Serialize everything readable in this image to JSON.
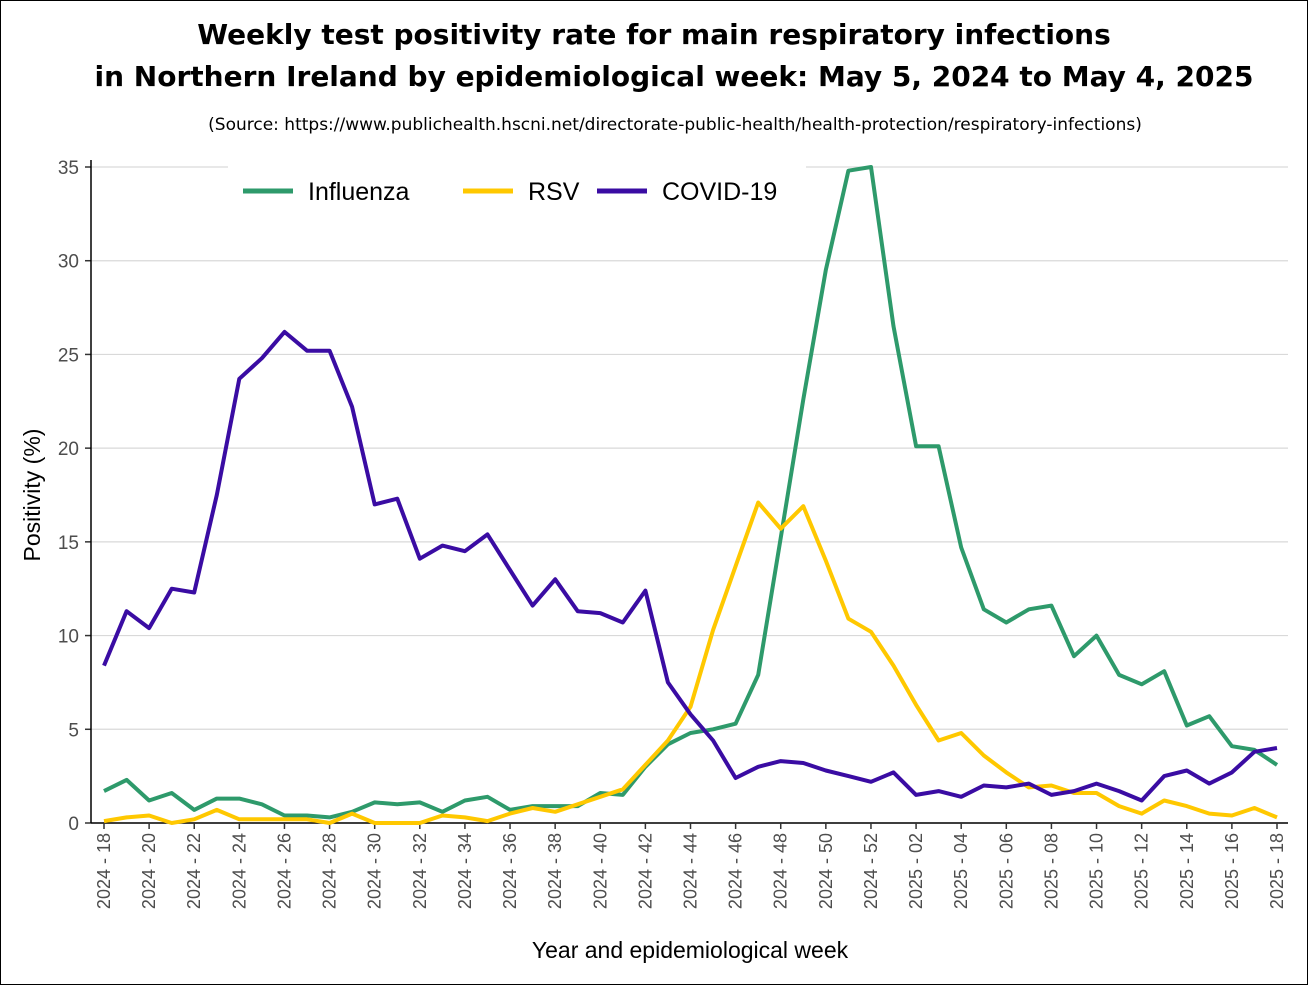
{
  "title_line1": "Weekly test positivity rate for main respiratory infections",
  "title_line2": "in Northern Ireland by epidemiological week: May 5, 2024 to May 4, 2025",
  "source": "(Source: https://www.publichealth.hscni.net/directorate-public-health/health-protection/respiratory-infections)",
  "chart_data": {
    "type": "line",
    "xlabel": "Year and epidemiological week",
    "ylabel": "Positivity (%)",
    "ylim": [
      0,
      35
    ],
    "yticks": [
      0,
      5,
      10,
      15,
      20,
      25,
      30,
      35
    ],
    "grid": "horizontal",
    "legend_position": "top-left",
    "x": [
      "2024 - 18",
      "2024 - 19",
      "2024 - 20",
      "2024 - 21",
      "2024 - 22",
      "2024 - 23",
      "2024 - 24",
      "2024 - 25",
      "2024 - 26",
      "2024 - 27",
      "2024 - 28",
      "2024 - 29",
      "2024 - 30",
      "2024 - 31",
      "2024 - 32",
      "2024 - 33",
      "2024 - 34",
      "2024 - 35",
      "2024 - 36",
      "2024 - 37",
      "2024 - 38",
      "2024 - 39",
      "2024 - 40",
      "2024 - 41",
      "2024 - 42",
      "2024 - 43",
      "2024 - 44",
      "2024 - 45",
      "2024 - 46",
      "2024 - 47",
      "2024 - 48",
      "2024 - 49",
      "2024 - 50",
      "2024 - 51",
      "2024 - 52",
      "2025 - 01",
      "2025 - 02",
      "2025 - 03",
      "2025 - 04",
      "2025 - 05",
      "2025 - 06",
      "2025 - 07",
      "2025 - 08",
      "2025 - 09",
      "2025 - 10",
      "2025 - 11",
      "2025 - 12",
      "2025 - 13",
      "2025 - 14",
      "2025 - 15",
      "2025 - 16",
      "2025 - 17",
      "2025 - 18"
    ],
    "tick_labels": [
      "2024 - 18",
      "2024 - 20",
      "2024 - 22",
      "2024 - 24",
      "2024 - 26",
      "2024 - 28",
      "2024 - 30",
      "2024 - 32",
      "2024 - 34",
      "2024 - 36",
      "2024 - 38",
      "2024 - 40",
      "2024 - 42",
      "2024 - 44",
      "2024 - 46",
      "2024 - 48",
      "2024 - 50",
      "2024 - 52",
      "2025 - 02",
      "2025 - 04",
      "2025 - 06",
      "2025 - 08",
      "2025 - 10",
      "2025 - 12",
      "2025 - 14",
      "2025 - 16",
      "2025 - 18"
    ],
    "series": [
      {
        "name": "Influenza",
        "color": "#2e9a6b",
        "values": [
          1.7,
          2.3,
          1.2,
          1.6,
          0.7,
          1.3,
          1.3,
          1.0,
          0.4,
          0.4,
          0.3,
          0.6,
          1.1,
          1.0,
          1.1,
          0.6,
          1.2,
          1.4,
          0.7,
          0.9,
          0.9,
          0.9,
          1.6,
          1.5,
          3.0,
          4.2,
          4.8,
          5.0,
          5.3,
          7.9,
          15.2,
          22.6,
          29.5,
          34.8,
          35.0,
          26.5,
          20.1,
          20.1,
          14.7,
          11.4,
          10.7,
          11.4,
          11.6,
          8.9,
          10.0,
          7.9,
          7.4,
          8.1,
          5.2,
          5.7,
          4.1,
          3.9,
          3.1
        ]
      },
      {
        "name": "RSV",
        "color": "#ffc800",
        "values": [
          0.1,
          0.3,
          0.4,
          0.0,
          0.2,
          0.7,
          0.2,
          0.2,
          0.2,
          0.2,
          0.0,
          0.5,
          0.0,
          0.0,
          0.0,
          0.4,
          0.3,
          0.1,
          0.5,
          0.8,
          0.6,
          1.0,
          1.4,
          1.8,
          3.1,
          4.4,
          6.2,
          10.3,
          13.7,
          17.1,
          15.7,
          16.9,
          14.0,
          10.9,
          10.2,
          8.4,
          6.3,
          4.4,
          4.8,
          3.6,
          2.7,
          1.9,
          2.0,
          1.6,
          1.6,
          0.9,
          0.5,
          1.2,
          0.9,
          0.5,
          0.4,
          0.8,
          0.3
        ]
      },
      {
        "name": "COVID-19",
        "color": "#3a0ca3",
        "values": [
          8.4,
          11.3,
          10.4,
          12.5,
          12.3,
          17.5,
          23.7,
          24.8,
          26.2,
          25.2,
          25.2,
          22.2,
          17.0,
          17.3,
          14.1,
          14.8,
          14.5,
          15.4,
          13.5,
          11.6,
          13.0,
          11.3,
          11.2,
          10.7,
          12.4,
          7.5,
          5.8,
          4.4,
          2.4,
          3.0,
          3.3,
          3.2,
          2.8,
          2.5,
          2.2,
          2.7,
          1.5,
          1.7,
          1.4,
          2.0,
          1.9,
          2.1,
          1.5,
          1.7,
          2.1,
          1.7,
          1.2,
          2.5,
          2.8,
          2.1,
          2.7,
          3.8,
          4.0
        ]
      }
    ]
  }
}
